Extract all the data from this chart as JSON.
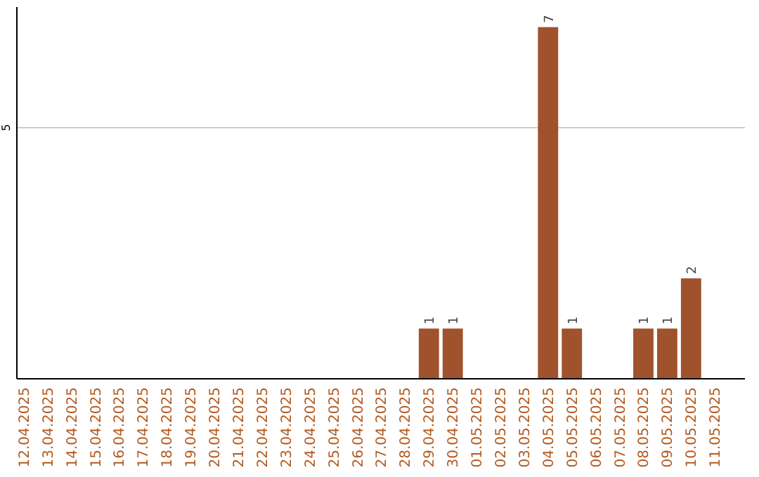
{
  "chart_data": {
    "type": "bar",
    "categories": [
      "12.04.2025",
      "13.04.2025",
      "14.04.2025",
      "15.04.2025",
      "16.04.2025",
      "17.04.2025",
      "18.04.2025",
      "19.04.2025",
      "20.04.2025",
      "21.04.2025",
      "22.04.2025",
      "23.04.2025",
      "24.04.2025",
      "25.04.2025",
      "26.04.2025",
      "27.04.2025",
      "28.04.2025",
      "29.04.2025",
      "30.04.2025",
      "01.05.2025",
      "02.05.2025",
      "03.05.2025",
      "04.05.2025",
      "05.05.2025",
      "06.05.2025",
      "07.05.2025",
      "08.05.2025",
      "09.05.2025",
      "10.05.2025",
      "11.05.2025"
    ],
    "values": [
      null,
      null,
      null,
      null,
      null,
      null,
      null,
      null,
      null,
      null,
      null,
      null,
      null,
      null,
      null,
      null,
      null,
      1,
      1,
      null,
      null,
      null,
      7,
      1,
      null,
      null,
      1,
      1,
      2,
      null
    ],
    "data_labels": true,
    "color": "#a0522d",
    "ylim": [
      0,
      7.4
    ],
    "yticks": [
      5
    ],
    "grid": "y"
  }
}
